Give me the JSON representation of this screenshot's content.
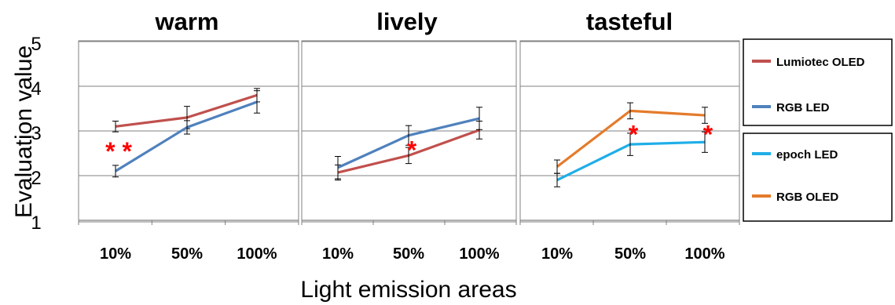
{
  "colors": {
    "lumiotec_oled": "#c0504d",
    "rgb_led": "#4f81bd",
    "epoch_led": "#1faee8",
    "rgb_oled": "#e47b2b",
    "significance": "#ff0000",
    "error_bar": "#000000",
    "grid": "#808080"
  },
  "chart_data": {
    "type": "line",
    "ylabel": "Evaluation value",
    "xlabel": "Light emission areas",
    "ylim": [
      1,
      5
    ],
    "yticks": [
      "1",
      "2",
      "3",
      "4",
      "5"
    ],
    "categories": [
      "10%",
      "50%",
      "100%"
    ],
    "grid": true,
    "legend_position": "right",
    "legend": [
      {
        "label": "Lumiotec OLED",
        "color": "#c0504d"
      },
      {
        "label": "RGB LED",
        "color": "#4f81bd"
      },
      {
        "label": "epoch LED",
        "color": "#1faee8"
      },
      {
        "label": "RGB OLED",
        "color": "#e47b2b"
      }
    ],
    "panels": [
      {
        "title": "warm",
        "series": [
          {
            "name": "Lumiotec OLED",
            "color": "#c0504d",
            "values": [
              3.1,
              3.3,
              3.8
            ],
            "err": [
              0.12,
              0.25,
              0.15
            ]
          },
          {
            "name": "RGB LED",
            "color": "#4f81bd",
            "values": [
              2.1,
              3.08,
              3.65
            ],
            "err": [
              0.13,
              0.15,
              0.25
            ]
          }
        ],
        "significance": [
          {
            "category": 0,
            "y": 2.6,
            "text": "* *"
          }
        ]
      },
      {
        "title": "lively",
        "series": [
          {
            "name": "Lumiotec OLED",
            "color": "#c0504d",
            "values": [
              2.07,
              2.45,
              3.02
            ],
            "err": [
              0.17,
              0.18,
              0.2
            ]
          },
          {
            "name": "RGB LED",
            "color": "#4f81bd",
            "values": [
              2.18,
              2.9,
              3.28
            ],
            "err": [
              0.25,
              0.22,
              0.25
            ]
          }
        ],
        "significance": [
          {
            "category": 1,
            "y": 2.62,
            "text": "*"
          }
        ]
      },
      {
        "title": "tasteful",
        "series": [
          {
            "name": "epoch LED",
            "color": "#1faee8",
            "values": [
              1.9,
              2.7,
              2.75
            ],
            "err": [
              0.15,
              0.25,
              0.23
            ]
          },
          {
            "name": "RGB OLED",
            "color": "#e47b2b",
            "values": [
              2.2,
              3.45,
              3.35
            ],
            "err": [
              0.15,
              0.18,
              0.18
            ]
          }
        ],
        "significance": [
          {
            "category": 1,
            "y": 2.97,
            "text": "*"
          },
          {
            "category": 2,
            "y": 2.97,
            "text": "*"
          }
        ]
      }
    ]
  }
}
